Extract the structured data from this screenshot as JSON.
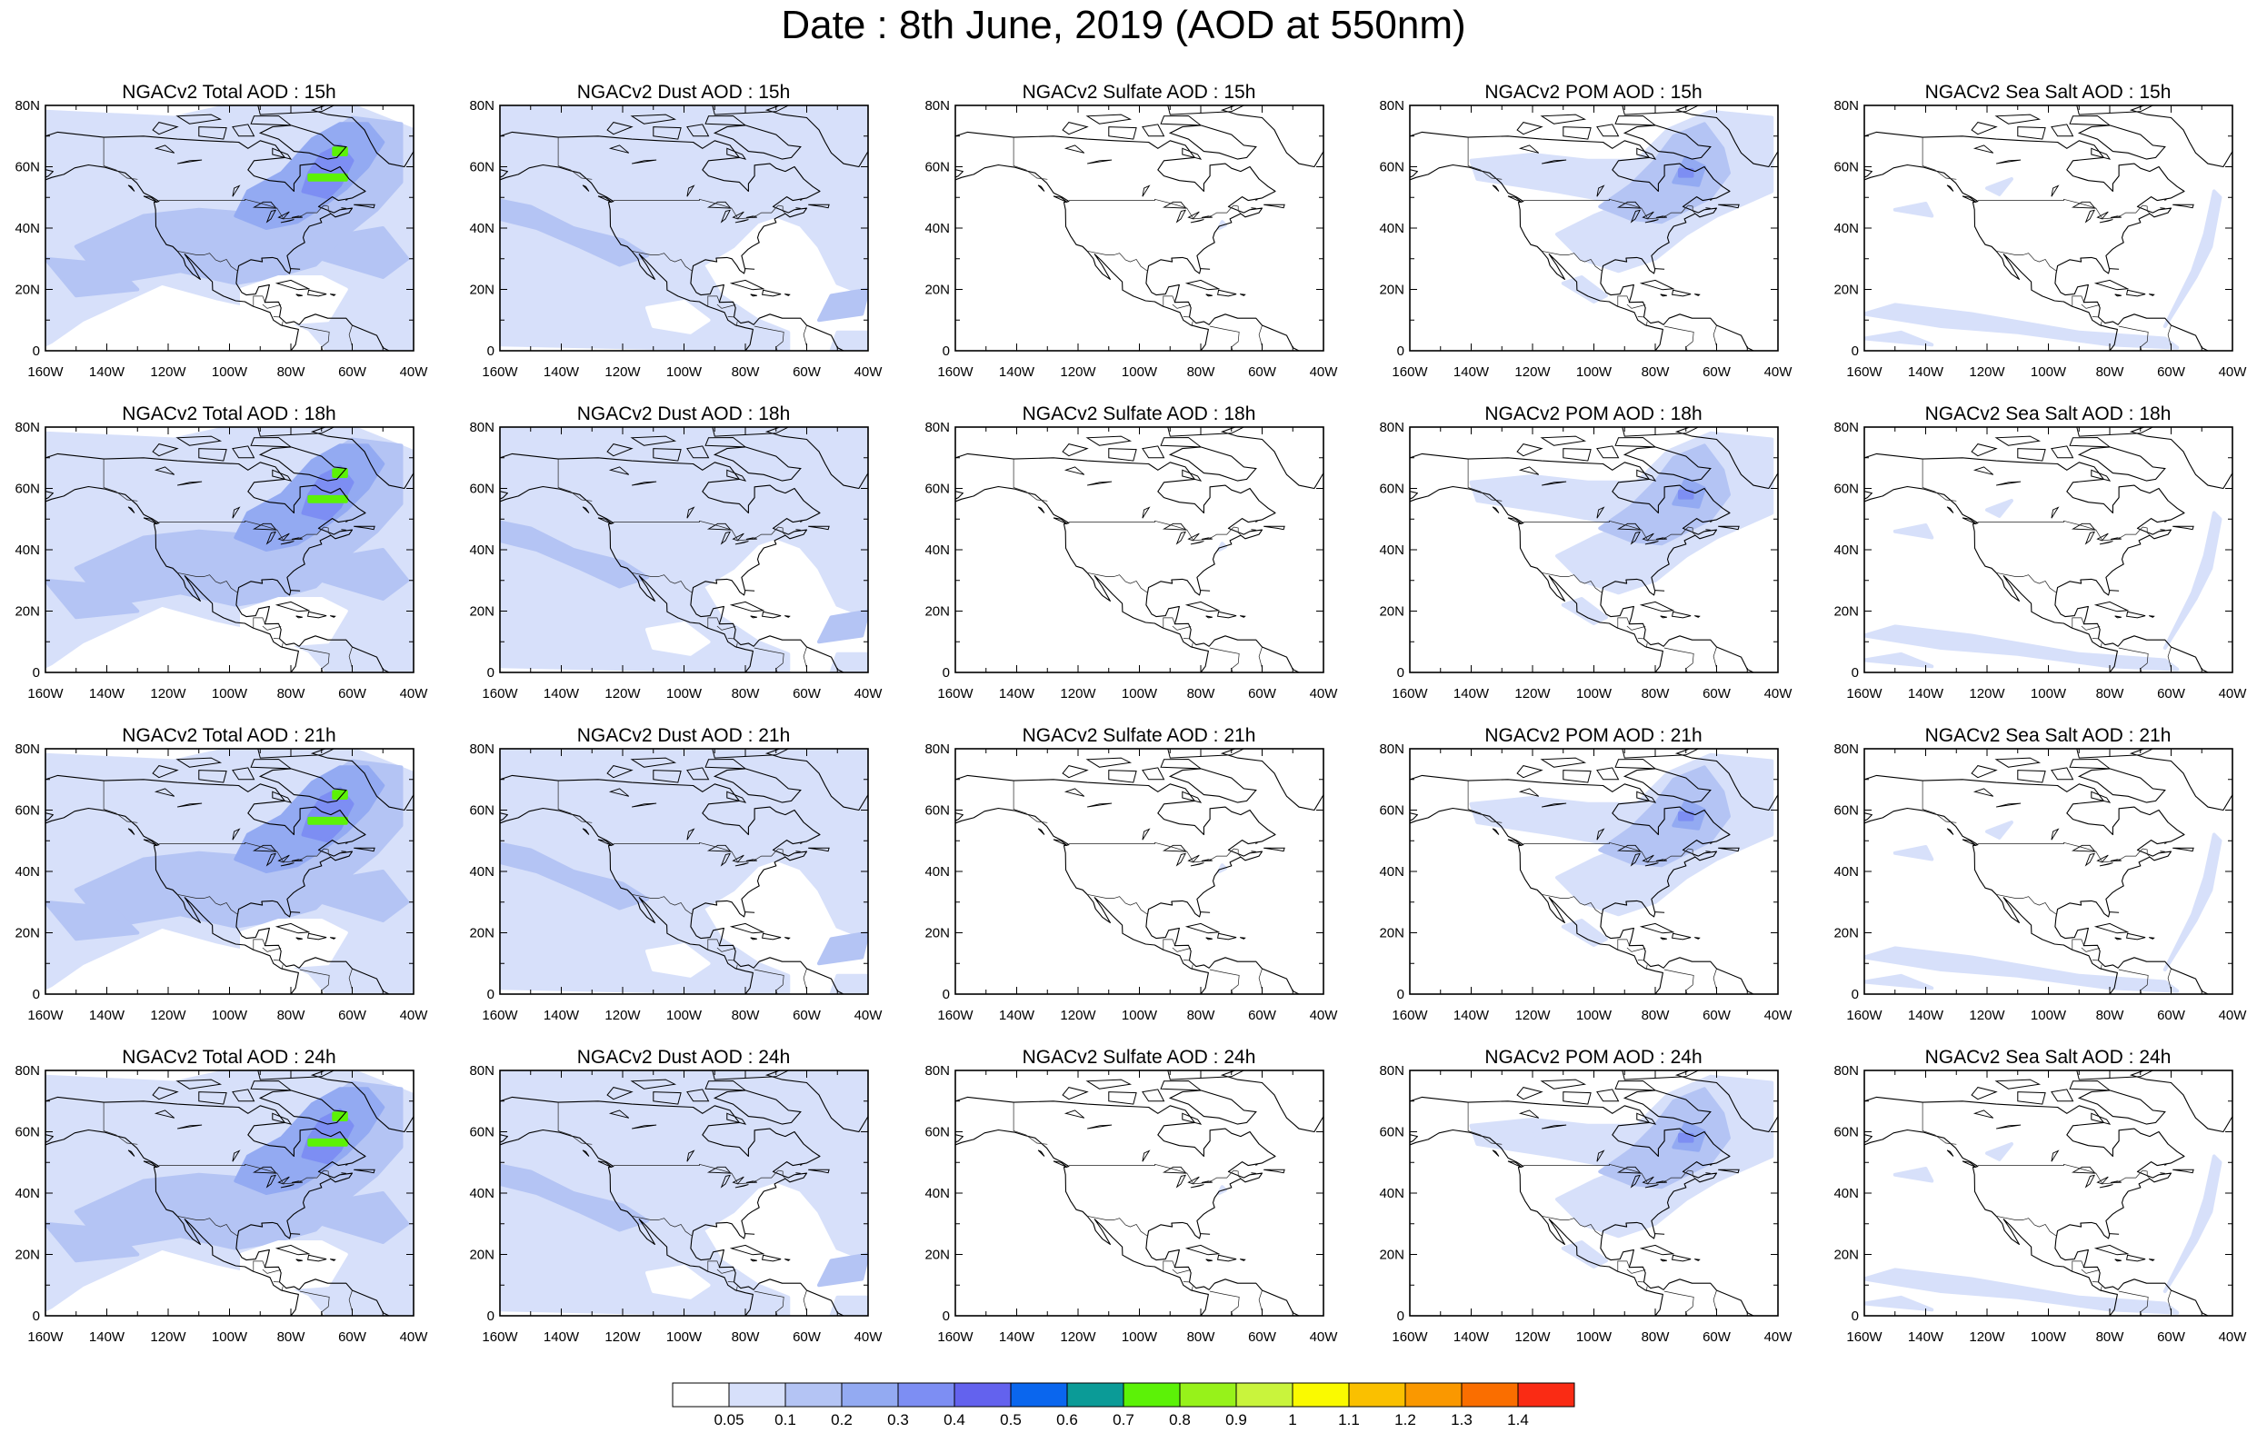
{
  "title": "Date : 8th June, 2019 (AOD at 550nm)",
  "axes": {
    "lon_ticks": [
      "160W",
      "140W",
      "120W",
      "100W",
      "80W",
      "60W",
      "40W"
    ],
    "lat_ticks": [
      "0",
      "20N",
      "40N",
      "60N",
      "80N"
    ],
    "lon_range": [
      -160,
      -40
    ],
    "lat_range": [
      0,
      80
    ]
  },
  "panels": [
    {
      "title": "NGACv2 Total AOD : 15h",
      "variable": "total",
      "hour": "15h"
    },
    {
      "title": "NGACv2 Dust AOD : 15h",
      "variable": "dust",
      "hour": "15h"
    },
    {
      "title": "NGACv2 Sulfate AOD : 15h",
      "variable": "sulfate",
      "hour": "15h"
    },
    {
      "title": "NGACv2 POM AOD : 15h",
      "variable": "pom",
      "hour": "15h"
    },
    {
      "title": "NGACv2 Sea Salt AOD : 15h",
      "variable": "seasalt",
      "hour": "15h"
    },
    {
      "title": "NGACv2 Total AOD : 18h",
      "variable": "total",
      "hour": "18h"
    },
    {
      "title": "NGACv2 Dust AOD : 18h",
      "variable": "dust",
      "hour": "18h"
    },
    {
      "title": "NGACv2 Sulfate AOD : 18h",
      "variable": "sulfate",
      "hour": "18h"
    },
    {
      "title": "NGACv2 POM AOD : 18h",
      "variable": "pom",
      "hour": "18h"
    },
    {
      "title": "NGACv2 Sea Salt AOD : 18h",
      "variable": "seasalt",
      "hour": "18h"
    },
    {
      "title": "NGACv2 Total AOD : 21h",
      "variable": "total",
      "hour": "21h"
    },
    {
      "title": "NGACv2 Dust AOD : 21h",
      "variable": "dust",
      "hour": "21h"
    },
    {
      "title": "NGACv2 Sulfate AOD : 21h",
      "variable": "sulfate",
      "hour": "21h"
    },
    {
      "title": "NGACv2 POM AOD : 21h",
      "variable": "pom",
      "hour": "21h"
    },
    {
      "title": "NGACv2 Sea Salt AOD : 21h",
      "variable": "seasalt",
      "hour": "21h"
    },
    {
      "title": "NGACv2 Total AOD : 24h",
      "variable": "total",
      "hour": "24h"
    },
    {
      "title": "NGACv2 Dust AOD : 24h",
      "variable": "dust",
      "hour": "24h"
    },
    {
      "title": "NGACv2 Sulfate AOD : 24h",
      "variable": "sulfate",
      "hour": "24h"
    },
    {
      "title": "NGACv2 POM AOD : 24h",
      "variable": "pom",
      "hour": "24h"
    },
    {
      "title": "NGACv2 Sea Salt  AOD : 24h",
      "variable": "seasalt",
      "hour": "24h"
    }
  ],
  "colorbar": {
    "labels": [
      "0.05",
      "0.1",
      "0.2",
      "0.3",
      "0.4",
      "0.5",
      "0.6",
      "0.7",
      "0.8",
      "0.9",
      "1",
      "1.1",
      "1.2",
      "1.3",
      "1.4"
    ],
    "colors": [
      "#ffffff",
      "#d7e0fa",
      "#b4c4f4",
      "#93aaf2",
      "#7d8ef3",
      "#6362ee",
      "#0a66ee",
      "#0b9b97",
      "#5cf207",
      "#97f21a",
      "#c9f43c",
      "#fafa00",
      "#fac000",
      "#fa9800",
      "#fa6e00",
      "#fa2b14"
    ]
  }
}
